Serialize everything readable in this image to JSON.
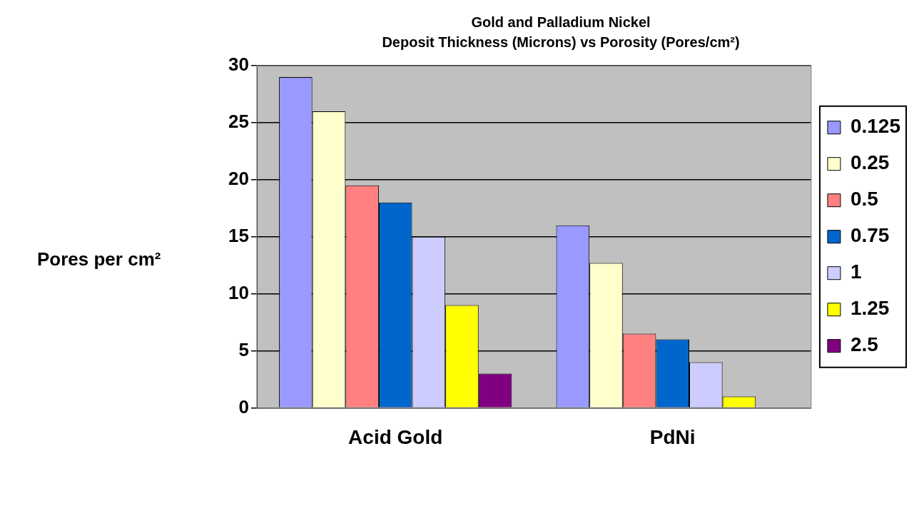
{
  "chart_data": {
    "type": "bar",
    "title": "Gold and Palladium Nickel",
    "subtitle": "Deposit Thickness (Microns) vs Porosity (Pores/cm²)",
    "ylabel": "Pores per cm²",
    "categories": [
      "Acid Gold",
      "PdNi"
    ],
    "series": [
      {
        "name": "0.125",
        "color": "#9999ff",
        "values": [
          29,
          16
        ]
      },
      {
        "name": "0.25",
        "color": "#ffffcc",
        "values": [
          26,
          12.7
        ]
      },
      {
        "name": "0.5",
        "color": "#ff8080",
        "values": [
          19.5,
          6.5
        ]
      },
      {
        "name": "0.75",
        "color": "#0066cc",
        "values": [
          18,
          6
        ]
      },
      {
        "name": "1",
        "color": "#ccccff",
        "values": [
          15,
          4
        ]
      },
      {
        "name": "1.25",
        "color": "#ffff00",
        "values": [
          9,
          1
        ]
      },
      {
        "name": "2.5",
        "color": "#800080",
        "values": [
          3,
          null
        ]
      }
    ],
    "ylim": [
      0,
      30
    ],
    "yticks": [
      0,
      5,
      10,
      15,
      20,
      25,
      30
    ],
    "grid": "y",
    "legend": "right"
  }
}
